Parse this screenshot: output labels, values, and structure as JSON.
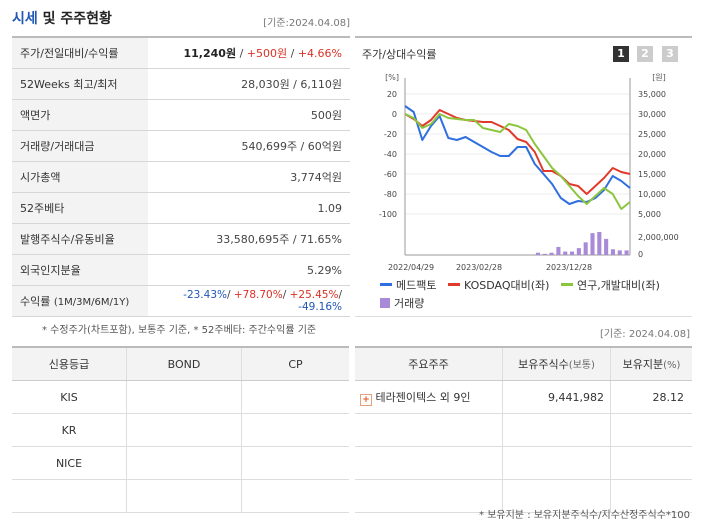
{
  "header": {
    "title_accent": "시세",
    "title_rest": " 및 주주현황",
    "date": "[기준:2024.04.08]"
  },
  "quote_rows": [
    {
      "label": "주가/전일대비/수익률",
      "price": "11,240원",
      "change": "+500원",
      "rate": "+4.66%"
    },
    {
      "label": "52Weeks 최고/최저",
      "value": "28,030원 / 6,110원"
    },
    {
      "label": "액면가",
      "value": "500원"
    },
    {
      "label": "거래량/거래대금",
      "value": "540,699주 / 60억원"
    },
    {
      "label": "시가총액",
      "value": "3,774억원"
    },
    {
      "label": "52주베타",
      "value": "1.09"
    },
    {
      "label": "발행주식수/유동비율",
      "value": "33,580,695주 / 71.65%"
    },
    {
      "label": "외국인지분율",
      "value": "5.29%"
    },
    {
      "label": "수익률",
      "sublabel": "(1M/3M/6M/1Y)",
      "r1": "-23.43%",
      "r2": "+78.70%",
      "r3": "+25.45%",
      "r4": "-49.16%"
    }
  ],
  "quote_note": "* 수정주가(차트포함), 보통주 기준, * 52주베타: 주간수익률 기준",
  "chart_panel": {
    "title": "주가/상대수익률",
    "pages": [
      "1",
      "2",
      "3"
    ],
    "active_page": "1"
  },
  "chart_data": {
    "type": "line",
    "left_unit": "[%]",
    "right_unit": "[원]",
    "left_ticks": [
      "20",
      "0",
      "-20",
      "-40",
      "-60",
      "-80",
      "-100"
    ],
    "right_ticks": [
      "35,000",
      "30,000",
      "25,000",
      "20,000",
      "15,000",
      "10,000",
      "5,000"
    ],
    "volume_ticks": [
      "2,000,000",
      "0"
    ],
    "x_ticks": [
      "2022/04/29",
      "2023/02/28",
      "2023/12/28"
    ],
    "series": [
      {
        "name": "메드팩토",
        "color": "#2f6fe0",
        "values": [
          8,
          2,
          -26,
          -12,
          -2,
          -24,
          -26,
          -23,
          -28,
          -33,
          -38,
          -42,
          -42,
          -33,
          -33,
          -50,
          -60,
          -70,
          -84,
          -90,
          -87,
          -88,
          -84,
          -76,
          -62,
          -67,
          -74
        ]
      },
      {
        "name": "KOSDAQ대비(좌)",
        "color": "#e03a2a",
        "values": [
          0,
          -5,
          -12,
          -6,
          4,
          0,
          -4,
          -6,
          -7,
          -8,
          -8,
          -12,
          -16,
          -25,
          -28,
          -38,
          -57,
          -57,
          -62,
          -70,
          -72,
          -80,
          -72,
          -64,
          -54,
          -58,
          -60
        ]
      },
      {
        "name": "연구,개발대비(좌)",
        "color": "#8cc63f",
        "values": [
          0,
          -4,
          -14,
          -10,
          0,
          -4,
          -5,
          -6,
          -6,
          -14,
          -16,
          -18,
          -10,
          -12,
          -16,
          -30,
          -42,
          -54,
          -62,
          -72,
          -82,
          -90,
          -82,
          -74,
          -80,
          -95,
          -88
        ]
      }
    ],
    "volume": {
      "name": "거래량",
      "color": "#a98ad8",
      "values": [
        0,
        0,
        0,
        0,
        0,
        0,
        0,
        0,
        0,
        0,
        0,
        0,
        0,
        0,
        0,
        0,
        0,
        0,
        0,
        0.1,
        0.05,
        0.1,
        0.35,
        0.15,
        0.15,
        0.3,
        0.55,
        0.95,
        1.0,
        0.7,
        0.25,
        0.2,
        0.2
      ]
    }
  },
  "chart_date_label": "[기준: 2024.04.08]",
  "credit_table": {
    "headers": [
      "신용등급",
      "BOND",
      "CP"
    ],
    "rows": [
      [
        "KIS",
        "",
        ""
      ],
      [
        "KR",
        "",
        ""
      ],
      [
        "NICE",
        "",
        ""
      ],
      [
        "",
        "",
        ""
      ]
    ]
  },
  "shareholder_table": {
    "headers": [
      "주요주주",
      "보유주식수",
      "(보통)",
      "보유지분",
      "(%)"
    ],
    "rows": [
      {
        "name": "테라젠이텍스 외 9인",
        "shares": "9,441,982",
        "pct": "28.12"
      }
    ],
    "expand_icon": "+"
  },
  "shareholder_note": "* 보유지분 : 보유지분주식수/지수산정주식수*100"
}
